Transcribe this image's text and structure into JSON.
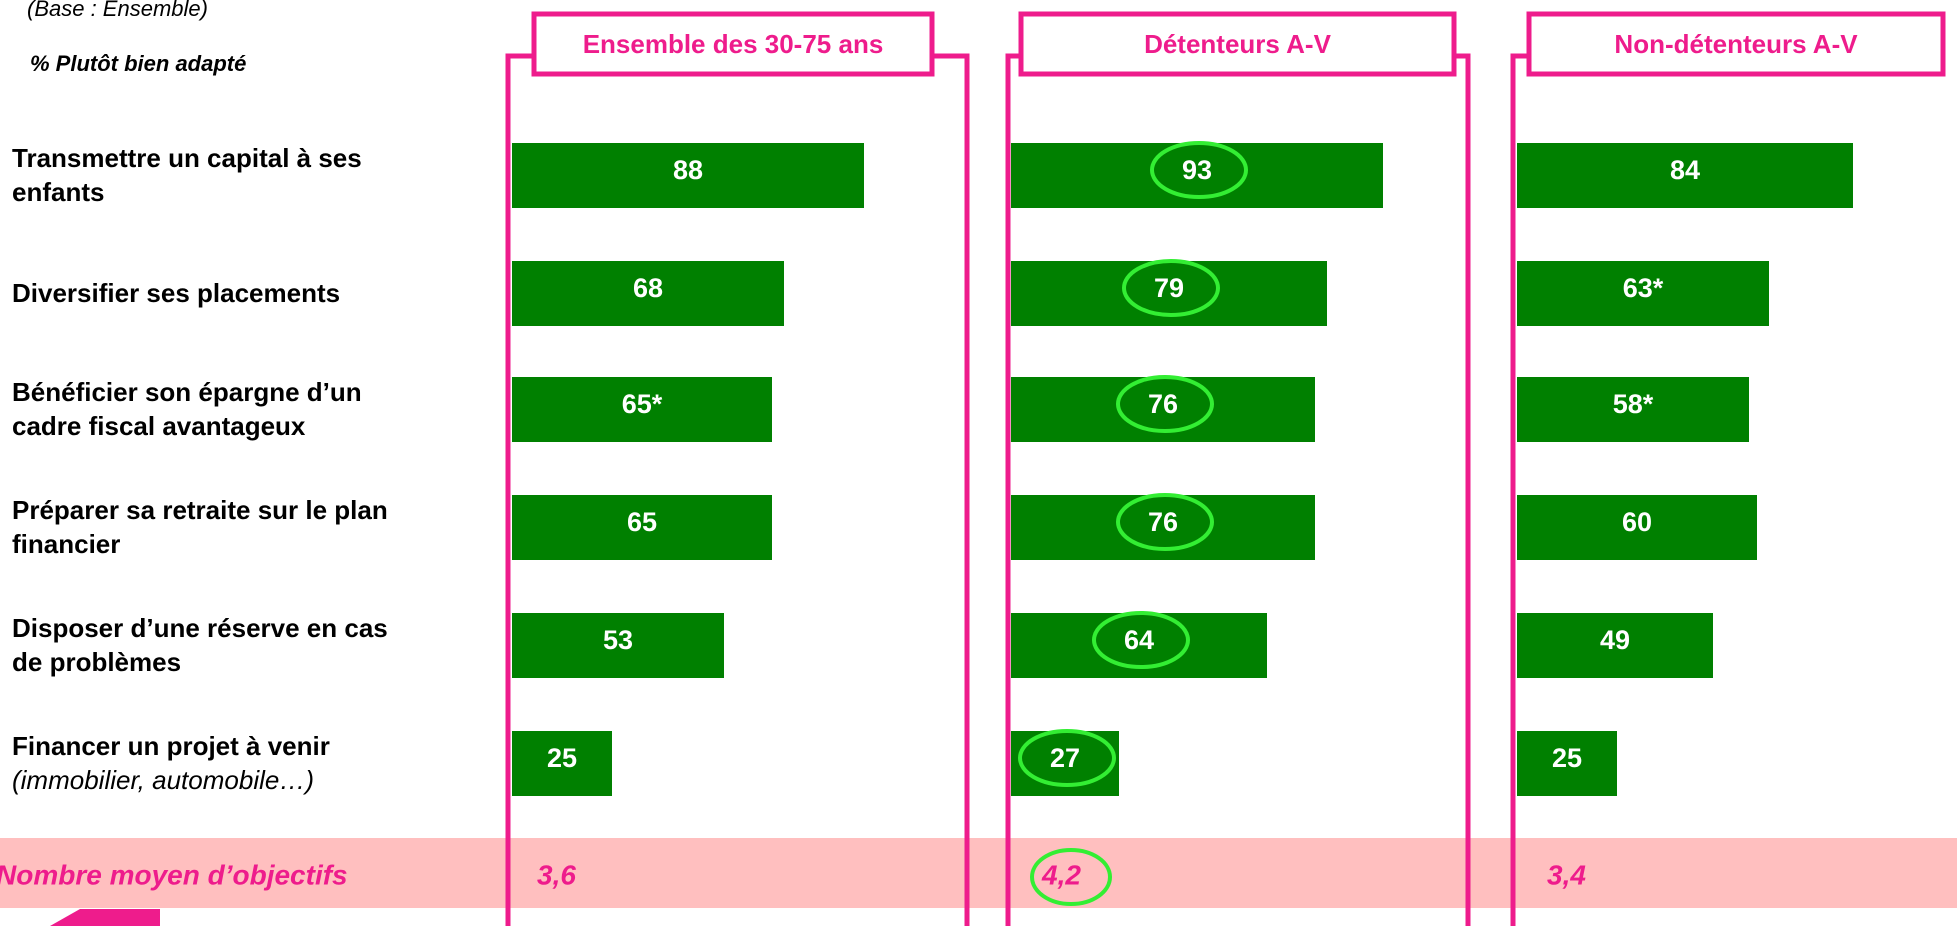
{
  "base_note": "(Base : Ensemble)",
  "measure_label": "% Plutôt bien adapté",
  "categories": [
    "Transmettre un capital à ses enfants",
    "Diversifier ses placements",
    "Bénéficier son épargne d’un cadre fiscal avantageux",
    "Préparer sa retraite sur le plan financier",
    "Disposer d’une réserve en cas de problèmes",
    "Financer un projet à venir"
  ],
  "category_note": "(immobilier, automobile…)",
  "mean_label": "Nombre moyen d’objectifs",
  "chart_data": [
    {
      "type": "bar",
      "title": "Ensemble des 30-75 ans",
      "color": "#008000",
      "xlim": [
        0,
        100
      ],
      "values": [
        88,
        68,
        65,
        65,
        53,
        25
      ],
      "value_labels": [
        "88",
        "68",
        "65*",
        "65",
        "53",
        "25"
      ],
      "mean": 3.6,
      "mean_value_label": "3,6",
      "highlight": false
    },
    {
      "type": "bar",
      "title": "Détenteurs A-V",
      "color": "#008000",
      "xlim": [
        0,
        100
      ],
      "values": [
        93,
        79,
        76,
        76,
        64,
        27
      ],
      "value_labels": [
        "93",
        "79",
        "76",
        "76",
        "64",
        "27"
      ],
      "mean": 4.2,
      "mean_value_label": "4,2",
      "highlight": true,
      "highlight_color": "#33ee33"
    },
    {
      "type": "bar",
      "title": "Non-détenteurs A-V",
      "color": "#008000",
      "xlim": [
        0,
        100
      ],
      "values": [
        84,
        63,
        58,
        60,
        49,
        25
      ],
      "value_labels": [
        "84",
        "63*",
        "58*",
        "60",
        "49",
        "25"
      ],
      "mean": 3.4,
      "mean_value_label": "3,4",
      "highlight": false
    }
  ]
}
